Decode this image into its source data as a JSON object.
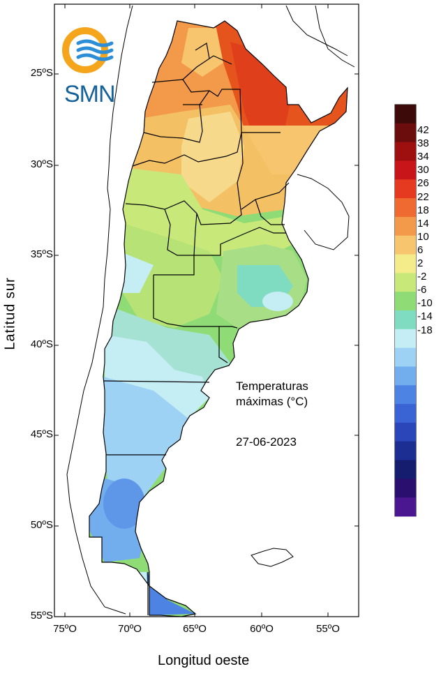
{
  "map": {
    "organization": "SMN",
    "title_line1": "Temperaturas",
    "title_line2": "máximas (°C)",
    "date": "27-06-2023",
    "ylabel": "Latitud sur",
    "xlabel": "Longitud oeste",
    "lat_ticks": [
      "25ºS",
      "30ºS",
      "35ºS",
      "40ºS",
      "45ºS",
      "50ºS",
      "55ºS"
    ],
    "lon_ticks": [
      "75ºO",
      "70ºO",
      "65ºO",
      "60ºO",
      "55ºO"
    ]
  },
  "colorbar": {
    "labels": [
      "42",
      "38",
      "34",
      "30",
      "26",
      "22",
      "18",
      "14",
      "10",
      "6",
      "2",
      "-2",
      "-6",
      "-10",
      "-14",
      "-18"
    ],
    "colors": [
      "#3d0a0a",
      "#6b0d0d",
      "#9e1010",
      "#c8151a",
      "#e63a20",
      "#ee6a30",
      "#f39a4a",
      "#f7c56d",
      "#f4ec8a",
      "#c9e87a",
      "#8fdc76",
      "#7fdcc0",
      "#c4eef4",
      "#9dd2f4",
      "#72adee",
      "#4d84e3",
      "#3a63d4",
      "#2b46b8",
      "#1d2e92",
      "#141d6e",
      "#2a0f6e",
      "#4a1790"
    ]
  },
  "logo": {
    "ring_color": "#f5a51c",
    "wave_color": "#2c8ed6",
    "text_color": "#15619a"
  }
}
